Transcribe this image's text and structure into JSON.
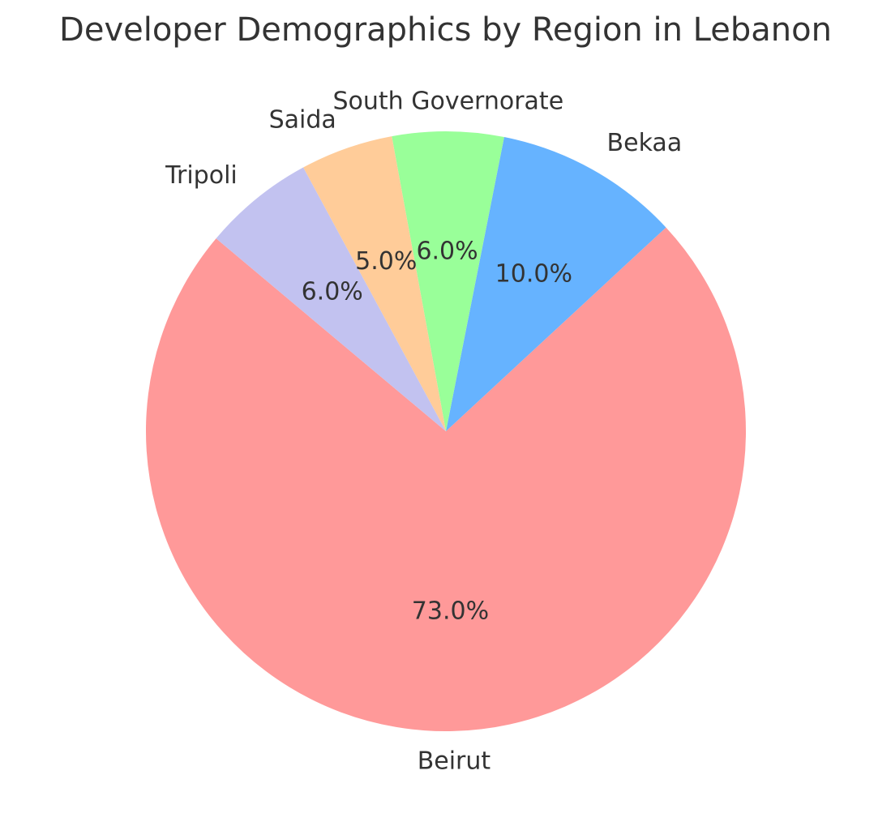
{
  "chart_data": {
    "type": "pie",
    "title": "Developer Demographics by Region in Lebanon",
    "start_angle_deg": 140,
    "direction": "counterclockwise",
    "slices": [
      {
        "label": "Beirut",
        "value": 73.0,
        "pct_text": "73.0%",
        "color": "#ff9999"
      },
      {
        "label": "Bekaa",
        "value": 10.0,
        "pct_text": "10.0%",
        "color": "#66b3ff"
      },
      {
        "label": "South Governorate",
        "value": 6.0,
        "pct_text": "6.0%",
        "color": "#99ff99"
      },
      {
        "label": "Saida",
        "value": 5.0,
        "pct_text": "5.0%",
        "color": "#ffcc99"
      },
      {
        "label": "Tripoli",
        "value": 6.0,
        "pct_text": "6.0%",
        "color": "#c2c2f0"
      }
    ]
  }
}
